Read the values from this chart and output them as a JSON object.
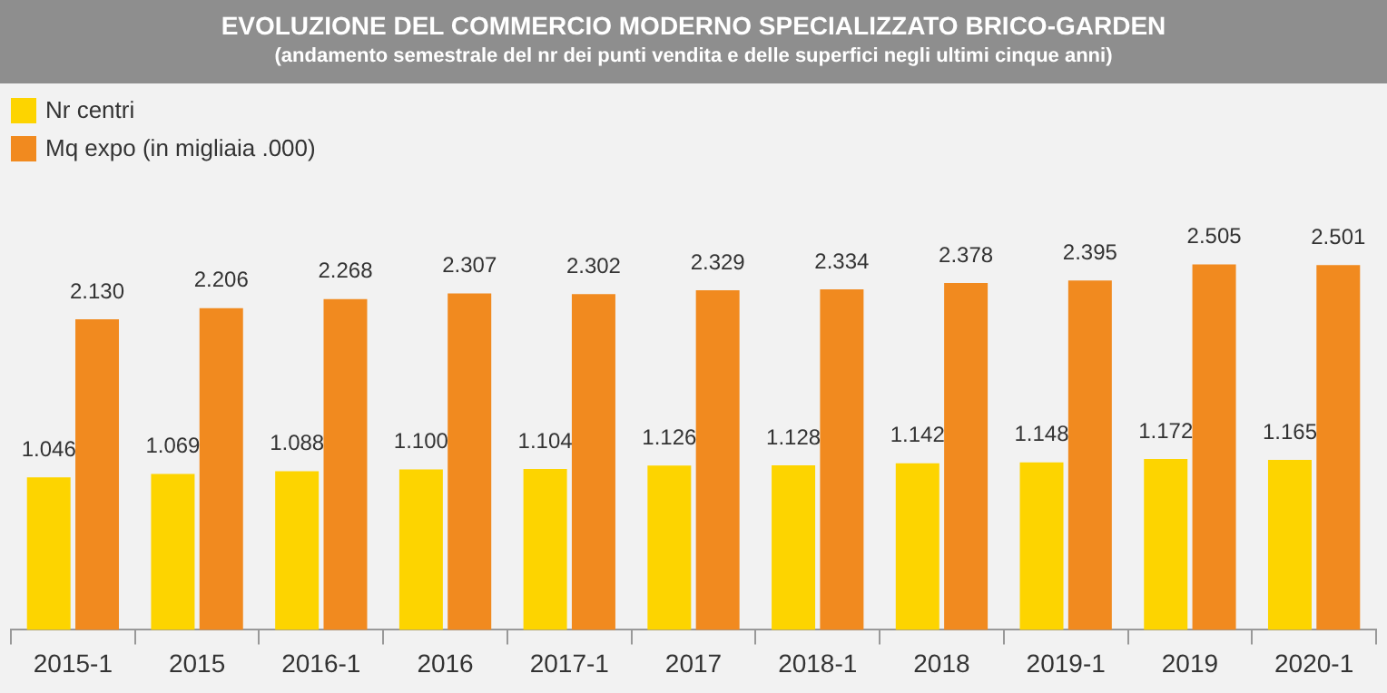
{
  "chart_data": {
    "type": "bar",
    "title": "EVOLUZIONE DEL COMMERCIO MODERNO SPECIALIZZATO BRICO-GARDEN",
    "subtitle": "(andamento semestrale del nr dei punti vendita e delle superfici negli ultimi cinque anni)",
    "categories": [
      "2015-1",
      "2015",
      "2016-1",
      "2016",
      "2017-1",
      "2017",
      "2018-1",
      "2018",
      "2019-1",
      "2019",
      "2020-1"
    ],
    "series": [
      {
        "name": "Nr centri",
        "color": "#fdd400",
        "values": [
          1046,
          1069,
          1088,
          1100,
          1104,
          1126,
          1128,
          1142,
          1148,
          1172,
          1165
        ],
        "value_labels": [
          "1.046",
          "1.069",
          "1.088",
          "1.100",
          "1.104",
          "1.126",
          "1.128",
          "1.142",
          "1.148",
          "1.172",
          "1.165"
        ]
      },
      {
        "name": "Mq expo (in migliaia .000)",
        "color": "#f18a1f",
        "values": [
          2130,
          2206,
          2268,
          2307,
          2302,
          2329,
          2334,
          2378,
          2395,
          2505,
          2501
        ],
        "value_labels": [
          "2.130",
          "2.206",
          "2.268",
          "2.307",
          "2.302",
          "2.329",
          "2.334",
          "2.378",
          "2.395",
          "2.505",
          "2.501"
        ]
      }
    ],
    "legend": "top left",
    "grid": false
  }
}
